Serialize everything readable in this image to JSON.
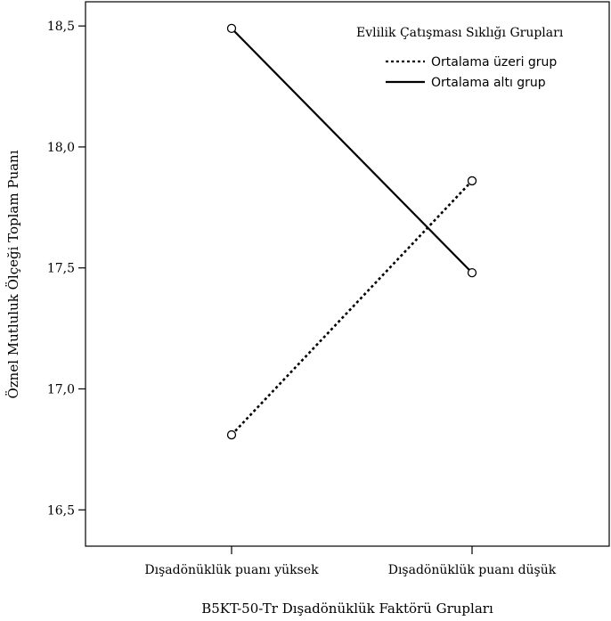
{
  "chart_data": {
    "type": "line",
    "xlabel": "B5KT-50-Tr Dışadönüklük Faktörü Grupları",
    "ylabel": "Öznel Mutluluk Ölçeği Toplam Puanı",
    "categories": [
      "Dışadönüklük puanı yüksek",
      "Dışadönüklük puanı düşük"
    ],
    "ylim": [
      16.35,
      18.6
    ],
    "yticks": [
      16.5,
      17.0,
      17.5,
      18.0,
      18.5
    ],
    "ytick_labels": [
      "16,5",
      "17,0",
      "17,5",
      "18,0",
      "18,5"
    ],
    "legend_title": "Evlilik Çatışması Sıklığı Grupları",
    "legend_position": "top-right",
    "grid": false,
    "series": [
      {
        "name": "Ortalama üzeri grup",
        "style": "dotted",
        "values": [
          16.81,
          17.86
        ]
      },
      {
        "name": "Ortalama altı grup",
        "style": "solid",
        "values": [
          18.49,
          17.48
        ]
      }
    ]
  }
}
